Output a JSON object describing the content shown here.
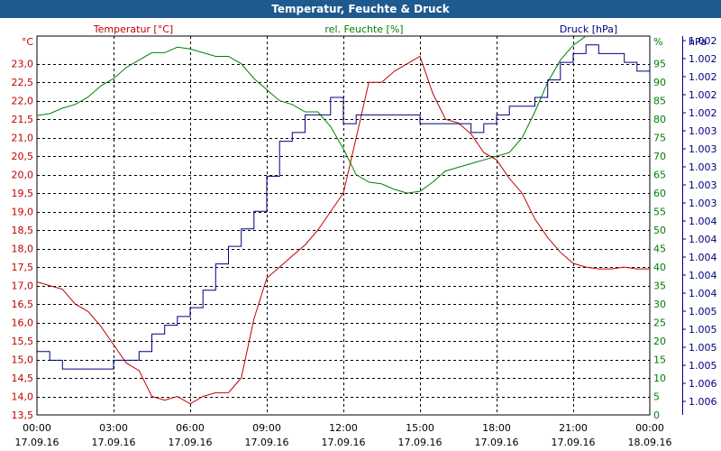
{
  "window": {
    "title": "Temperatur, Feuchte & Druck"
  },
  "chart_data": {
    "type": "line",
    "title": "Temperatur, Feuchte & Druck",
    "grid": true,
    "x_axis": {
      "ticks": [
        {
          "time": "00:00",
          "date": "17.09.16"
        },
        {
          "time": "03:00",
          "date": "17.09.16"
        },
        {
          "time": "06:00",
          "date": "17.09.16"
        },
        {
          "time": "09:00",
          "date": "17.09.16"
        },
        {
          "time": "12:00",
          "date": "17.09.16"
        },
        {
          "time": "15:00",
          "date": "17.09.16"
        },
        {
          "time": "18:00",
          "date": "17.09.16"
        },
        {
          "time": "21:00",
          "date": "17.09.16"
        },
        {
          "time": "00:00",
          "date": "18.09.16"
        }
      ],
      "range_hours": [
        0,
        24
      ]
    },
    "y_axes": {
      "temperature": {
        "unit": "°C",
        "label": "Temperatur [°C]",
        "color": "#c00000",
        "range": [
          13.5,
          23.75
        ],
        "tick_labels": [
          "13,5",
          "14,0",
          "14,5",
          "15,0",
          "15,5",
          "16,0",
          "16,5",
          "17,0",
          "17,5",
          "18,0",
          "18,5",
          "19,0",
          "19,5",
          "20,0",
          "20,5",
          "21,0",
          "21,5",
          "22,0",
          "22,5",
          "23,0"
        ]
      },
      "humidity": {
        "unit": "%",
        "label": "rel. Feuchte [%]",
        "color": "#008000",
        "range": [
          0,
          102.5
        ],
        "tick_labels": [
          "0",
          "5",
          "10",
          "15",
          "20",
          "25",
          "30",
          "35",
          "40",
          "45",
          "50",
          "55",
          "60",
          "65",
          "70",
          "75",
          "80",
          "85",
          "90",
          "95"
        ]
      },
      "pressure": {
        "unit": "hPa",
        "label": "Druck [hPa]",
        "color": "#000080",
        "tick_labels": [
          "1.002",
          "1.002",
          "1.002",
          "1.002",
          "1.002",
          "1.003",
          "1.003",
          "1.003",
          "1.003",
          "1.003",
          "1.004",
          "1.004",
          "1.004",
          "1.004",
          "1.004",
          "1.005",
          "1.005",
          "1.005",
          "1.005",
          "1.006",
          "1.006"
        ]
      }
    },
    "series": [
      {
        "name": "Temperatur [°C]",
        "axis": "temperature",
        "color": "#c00000",
        "x": [
          0,
          0.5,
          1,
          1.5,
          2,
          2.5,
          3,
          3.5,
          4,
          4.5,
          5,
          5.5,
          6,
          6.5,
          7,
          7.5,
          8,
          8.5,
          9,
          9.5,
          10,
          10.5,
          11,
          11.5,
          12,
          12.5,
          13,
          13.5,
          14,
          14.5,
          15,
          15.5,
          16,
          16.5,
          17,
          17.5,
          18,
          18.5,
          19,
          19.5,
          20,
          20.5,
          21,
          21.5,
          22,
          22.5,
          23,
          23.5,
          24
        ],
        "values": [
          17.1,
          17.0,
          16.9,
          16.5,
          16.3,
          15.9,
          15.4,
          14.9,
          14.7,
          14.0,
          13.9,
          14.0,
          13.8,
          14.0,
          14.1,
          14.1,
          14.5,
          16.1,
          17.2,
          17.5,
          17.8,
          18.1,
          18.5,
          19.0,
          19.5,
          21.0,
          22.5,
          22.5,
          22.8,
          23.0,
          23.2,
          22.2,
          21.5,
          21.4,
          21.1,
          20.6,
          20.4,
          19.9,
          19.5,
          18.8,
          18.3,
          17.9,
          17.6,
          17.5,
          17.45,
          17.45,
          17.5,
          17.45,
          17.45
        ]
      },
      {
        "name": "rel. Feuchte [%]",
        "axis": "humidity",
        "color": "#008000",
        "x": [
          0,
          0.5,
          1,
          1.5,
          2,
          2.5,
          3,
          3.5,
          4,
          4.5,
          5,
          5.5,
          6,
          6.5,
          7,
          7.5,
          8,
          8.5,
          9,
          9.5,
          10,
          10.5,
          11,
          11.5,
          12,
          12.5,
          13,
          13.5,
          14,
          14.5,
          15,
          15.5,
          16,
          16.5,
          17,
          17.5,
          18,
          18.5,
          19,
          19.5,
          20,
          20.5,
          21,
          21.5
        ],
        "values": [
          81,
          81.5,
          83,
          84,
          86,
          89,
          91,
          94,
          96,
          98,
          98,
          99.5,
          99,
          98,
          97,
          97,
          95,
          91,
          88,
          85,
          84,
          82,
          82,
          78,
          72,
          65,
          63,
          62.5,
          61,
          60,
          60.5,
          63,
          66,
          67,
          68,
          69,
          70,
          71,
          75,
          82,
          90,
          96,
          100,
          102.5
        ]
      },
      {
        "name": "Druck [hPa]",
        "axis": "pressure",
        "color": "#000080",
        "x": [
          0,
          0.5,
          1,
          1.5,
          2,
          2.5,
          3,
          3.5,
          4,
          4.5,
          5,
          5.5,
          6,
          6.5,
          7,
          7.5,
          8,
          8.5,
          9,
          9.5,
          10,
          10.5,
          11,
          11.5,
          12,
          12.5,
          13,
          13.5,
          14,
          14.5,
          15,
          15.5,
          16,
          16.5,
          17,
          17.5,
          18,
          18.5,
          19,
          19.5,
          20,
          20.5,
          21,
          21.5,
          22,
          22.5,
          23,
          23.5,
          24
        ],
        "levels": [
          6,
          5,
          4,
          4,
          4,
          4,
          5,
          5,
          6,
          8,
          9,
          10,
          11,
          13,
          16,
          18,
          20,
          22,
          26,
          30,
          31,
          33,
          33,
          35,
          32,
          33,
          33,
          33,
          33,
          33,
          32,
          32,
          32,
          32,
          31,
          32,
          33,
          34,
          34,
          35,
          37,
          39,
          40,
          41,
          40,
          40,
          39,
          38,
          37
        ],
        "level_max": 42
      }
    ],
    "legend": [
      "Temperatur [°C]",
      "rel. Feuchte [%]",
      "Druck [hPa]"
    ]
  }
}
